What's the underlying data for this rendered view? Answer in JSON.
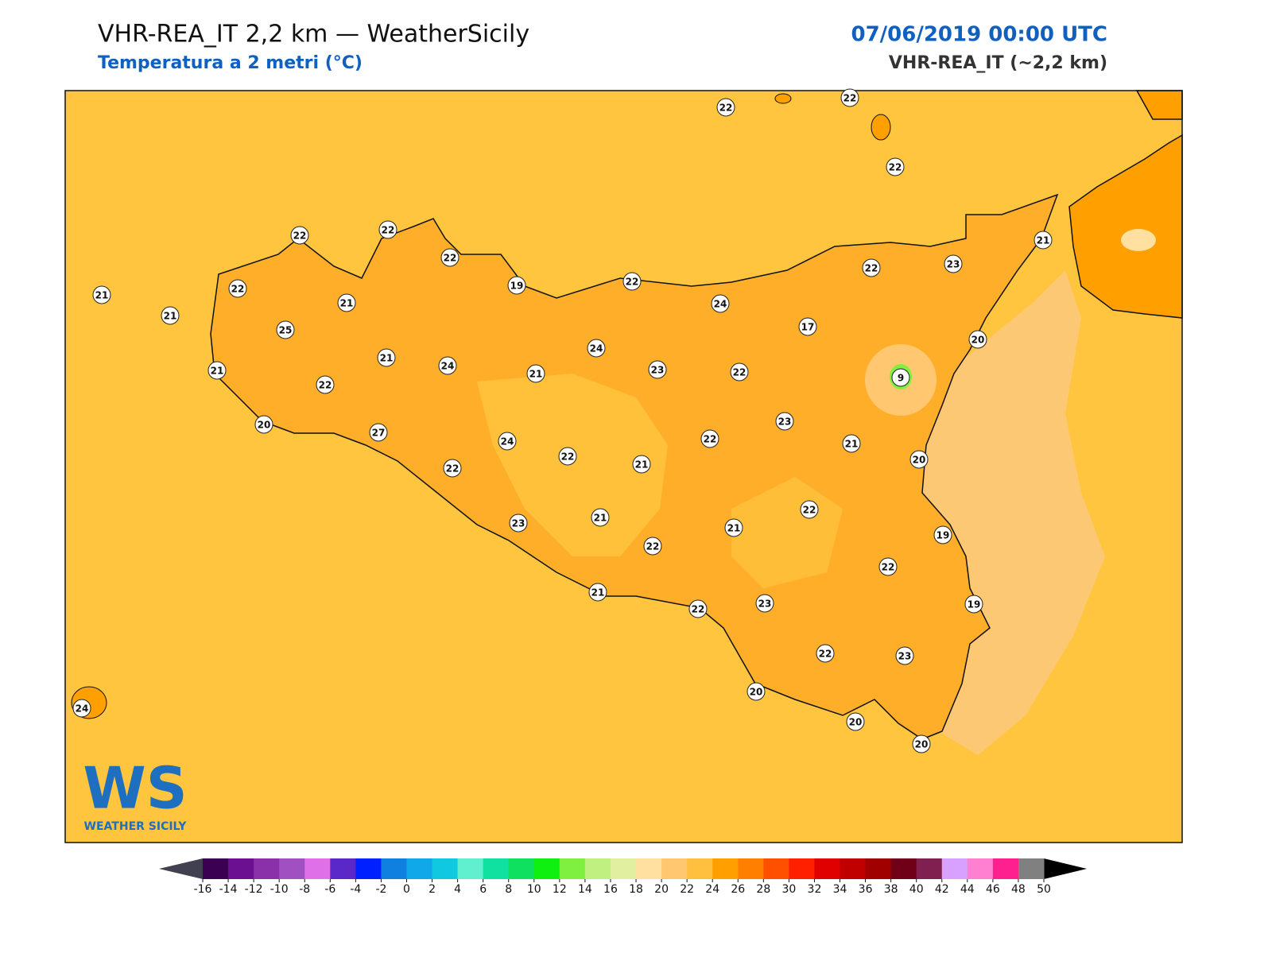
{
  "header": {
    "title": "VHR-REA_IT 2,2 km — WeatherSicily",
    "subtitle": "Temperatura a 2 metri (°C)",
    "datetime": "07/06/2019 00:00 UTC",
    "model": "VHR-REA_IT (~2,2 km)"
  },
  "stations": [
    22,
    22,
    22,
    22,
    22,
    22,
    21,
    21,
    22,
    21,
    25,
    21,
    21,
    22,
    20,
    24,
    19,
    22,
    24,
    24,
    21,
    23,
    17,
    22,
    23,
    21,
    20,
    9,
    22,
    23,
    27,
    24,
    22,
    22,
    21,
    22,
    21,
    20,
    22,
    23,
    21,
    21,
    22,
    19,
    22,
    21,
    22,
    23,
    19,
    22,
    23,
    20,
    20,
    20,
    24
  ],
  "colorbar": {
    "ticks": [
      -16,
      -14,
      -12,
      -10,
      -8,
      -6,
      -4,
      -2,
      0,
      2,
      4,
      6,
      8,
      10,
      12,
      14,
      16,
      18,
      20,
      22,
      24,
      26,
      28,
      30,
      32,
      34,
      36,
      38,
      40,
      42,
      44,
      46,
      48,
      50
    ],
    "colors": [
      "#3b0052",
      "#6a1090",
      "#8a30a8",
      "#a050c0",
      "#e070e8",
      "#5a28c8",
      "#0020ff",
      "#1080e0",
      "#10a8e8",
      "#10c8e0",
      "#60f0d0",
      "#10e0a0",
      "#10e060",
      "#10f010",
      "#80f040",
      "#c0f080",
      "#e0f0a0",
      "#ffe0a0",
      "#ffc870",
      "#ffc040",
      "#ffa000",
      "#ff8000",
      "#ff5000",
      "#ff2000",
      "#e00000",
      "#c00000",
      "#a00000",
      "#700018",
      "#802050",
      "#d8a0ff",
      "#ff80d0",
      "#ff2090",
      "#808080",
      "#303030"
    ],
    "under_color": "#404050",
    "over_color": "#000000"
  },
  "logo": {
    "mark": "WS",
    "text": "WEATHER SICILY"
  }
}
